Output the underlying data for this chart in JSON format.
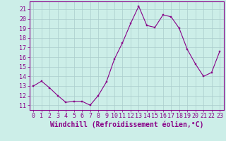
{
  "x": [
    0,
    1,
    2,
    3,
    4,
    5,
    6,
    7,
    8,
    9,
    10,
    11,
    12,
    13,
    14,
    15,
    16,
    17,
    18,
    19,
    20,
    21,
    22,
    23
  ],
  "y": [
    13,
    13.5,
    12.8,
    12.0,
    11.3,
    11.4,
    11.4,
    11.0,
    12.0,
    13.4,
    15.8,
    17.5,
    19.5,
    21.3,
    19.3,
    19.1,
    20.4,
    20.2,
    19.0,
    16.8,
    15.3,
    14.0,
    14.4,
    16.6
  ],
  "line_color": "#880088",
  "marker_color": "#880088",
  "bg_color": "#cceee8",
  "plot_bg_color": "#cceee8",
  "grid_color": "#aacccc",
  "border_color": "#880088",
  "xlabel": "Windchill (Refroidissement éolien,°C)",
  "ylim": [
    10.5,
    21.8
  ],
  "xlim": [
    -0.5,
    23.5
  ],
  "yticks": [
    11,
    12,
    13,
    14,
    15,
    16,
    17,
    18,
    19,
    20,
    21
  ],
  "xticks": [
    0,
    1,
    2,
    3,
    4,
    5,
    6,
    7,
    8,
    9,
    10,
    11,
    12,
    13,
    14,
    15,
    16,
    17,
    18,
    19,
    20,
    21,
    22,
    23
  ],
  "tick_color": "#880088",
  "font_size": 6,
  "xlabel_fontsize": 7
}
